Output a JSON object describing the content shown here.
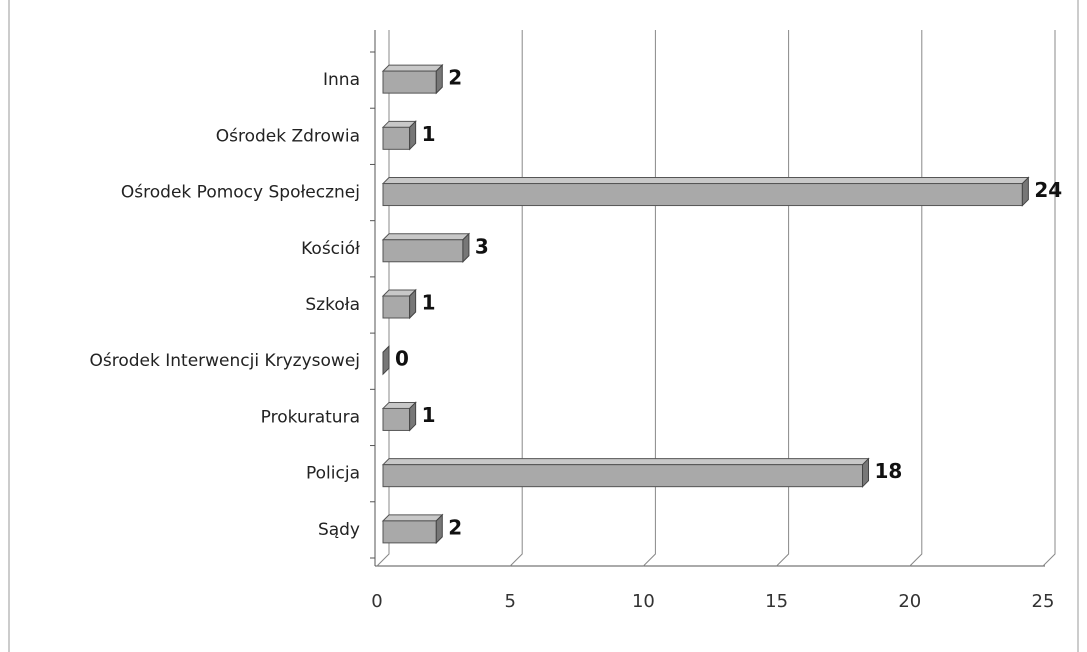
{
  "chart_data": {
    "type": "bar",
    "orientation": "horizontal",
    "categories": [
      "Sądy",
      "Policja",
      "Prokuratura",
      "Ośrodek Interwencji Kryzysowej",
      "Szkoła",
      "Kościół",
      "Ośrodek Pomocy Społecznej",
      "Ośrodek Zdrowia",
      "Inna"
    ],
    "values": [
      2,
      18,
      1,
      0,
      1,
      3,
      24,
      1,
      2
    ],
    "color": "#a9a9a9",
    "xlim": [
      0,
      25
    ],
    "xticks": [
      0,
      5,
      10,
      15,
      20,
      25
    ],
    "grid": true
  }
}
